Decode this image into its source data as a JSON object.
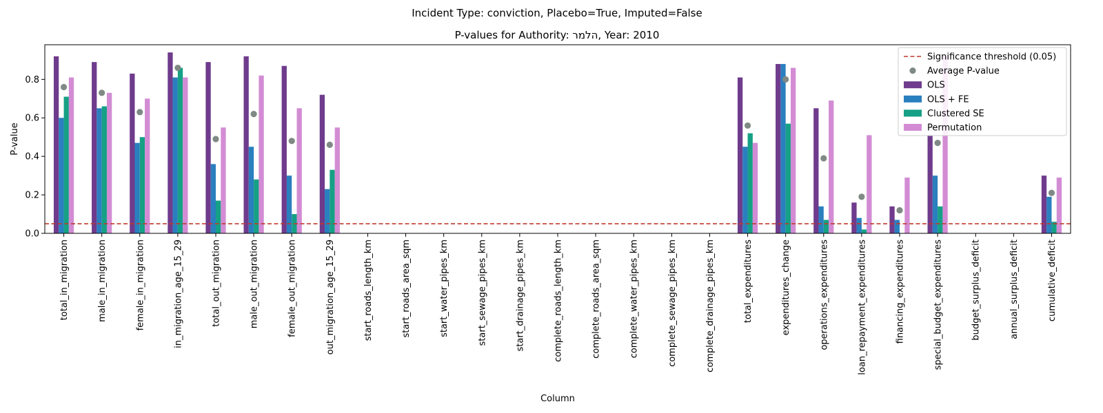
{
  "chart_data": {
    "type": "bar",
    "suptitle": "Incident Type: conviction, Placebo=True, Imputed=False",
    "title": "P-values for Authority: הלמר, Year: 2010",
    "xlabel": "Column",
    "ylabel": "P-value",
    "ylim": [
      0,
      0.98
    ],
    "yticks": [
      "0.0",
      "0.2",
      "0.4",
      "0.6",
      "0.8"
    ],
    "ytick_values": [
      0,
      0.2,
      0.4,
      0.6,
      0.8
    ],
    "threshold": 0.05,
    "legend_position": "top-right",
    "colors": {
      "ols": "#6f3b8c",
      "ols_fe": "#2a7fbf",
      "clustered": "#16a085",
      "perm": "#d38cd4",
      "avg": "#808a85",
      "threshold": "#c0392b"
    },
    "legend": [
      {
        "label": "Significance threshold (0.05)",
        "kind": "dashed",
        "color": "#c0392b"
      },
      {
        "label": "Average P-value",
        "kind": "dot",
        "color": "#808a85"
      },
      {
        "label": "OLS",
        "kind": "rect",
        "color": "#6f3b8c"
      },
      {
        "label": "OLS + FE",
        "kind": "rect",
        "color": "#2a7fbf"
      },
      {
        "label": "Clustered SE",
        "kind": "rect",
        "color": "#16a085"
      },
      {
        "label": "Permutation",
        "kind": "rect",
        "color": "#d38cd4"
      }
    ],
    "categories": [
      "total_in_migration",
      "male_in_migration",
      "female_in_migration",
      "in_migration_age_15_29",
      "total_out_migration",
      "male_out_migration",
      "female_out_migration",
      "out_migration_age_15_29",
      "start_roads_length_km",
      "start_roads_area_sqm",
      "start_water_pipes_km",
      "start_sewage_pipes_km",
      "start_drainage_pipes_km",
      "complete_roads_length_km",
      "complete_roads_area_sqm",
      "complete_water_pipes_km",
      "complete_sewage_pipes_km",
      "complete_drainage_pipes_km",
      "total_expenditures",
      "expenditures_change",
      "operations_expenditures",
      "loan_repayment_expenditures",
      "financing_expenditures",
      "special_budget_expenditures",
      "budget_surplus_deficit",
      "annual_surplus_deficit",
      "cumulative_deficit"
    ],
    "series": [
      {
        "name": "OLS",
        "values": [
          0.92,
          0.89,
          0.83,
          0.94,
          0.89,
          0.92,
          0.87,
          0.72,
          null,
          null,
          null,
          null,
          null,
          null,
          null,
          null,
          null,
          null,
          0.81,
          0.88,
          0.65,
          0.16,
          0.14,
          0.51,
          null,
          null,
          0.3
        ]
      },
      {
        "name": "OLS + FE",
        "values": [
          0.6,
          0.65,
          0.47,
          0.81,
          0.36,
          0.45,
          0.3,
          0.23,
          null,
          null,
          null,
          null,
          null,
          null,
          null,
          null,
          null,
          null,
          0.45,
          0.88,
          0.14,
          0.08,
          0.07,
          0.3,
          null,
          null,
          0.19
        ]
      },
      {
        "name": "Clustered SE",
        "values": [
          0.71,
          0.66,
          0.5,
          0.86,
          0.17,
          0.28,
          0.1,
          0.33,
          null,
          null,
          null,
          null,
          null,
          null,
          null,
          null,
          null,
          null,
          0.52,
          0.57,
          0.07,
          0.02,
          0.0,
          0.14,
          null,
          null,
          0.06
        ]
      },
      {
        "name": "Permutation",
        "values": [
          0.81,
          0.73,
          0.7,
          0.81,
          0.55,
          0.82,
          0.65,
          0.55,
          null,
          null,
          null,
          null,
          null,
          null,
          null,
          null,
          null,
          null,
          0.47,
          0.86,
          0.69,
          0.51,
          0.29,
          0.92,
          null,
          null,
          0.29
        ]
      }
    ],
    "average": [
      0.76,
      0.73,
      0.63,
      0.86,
      0.49,
      0.62,
      0.48,
      0.46,
      null,
      null,
      null,
      null,
      null,
      null,
      null,
      null,
      null,
      null,
      0.56,
      0.8,
      0.39,
      0.19,
      0.12,
      0.47,
      null,
      null,
      0.21
    ]
  }
}
